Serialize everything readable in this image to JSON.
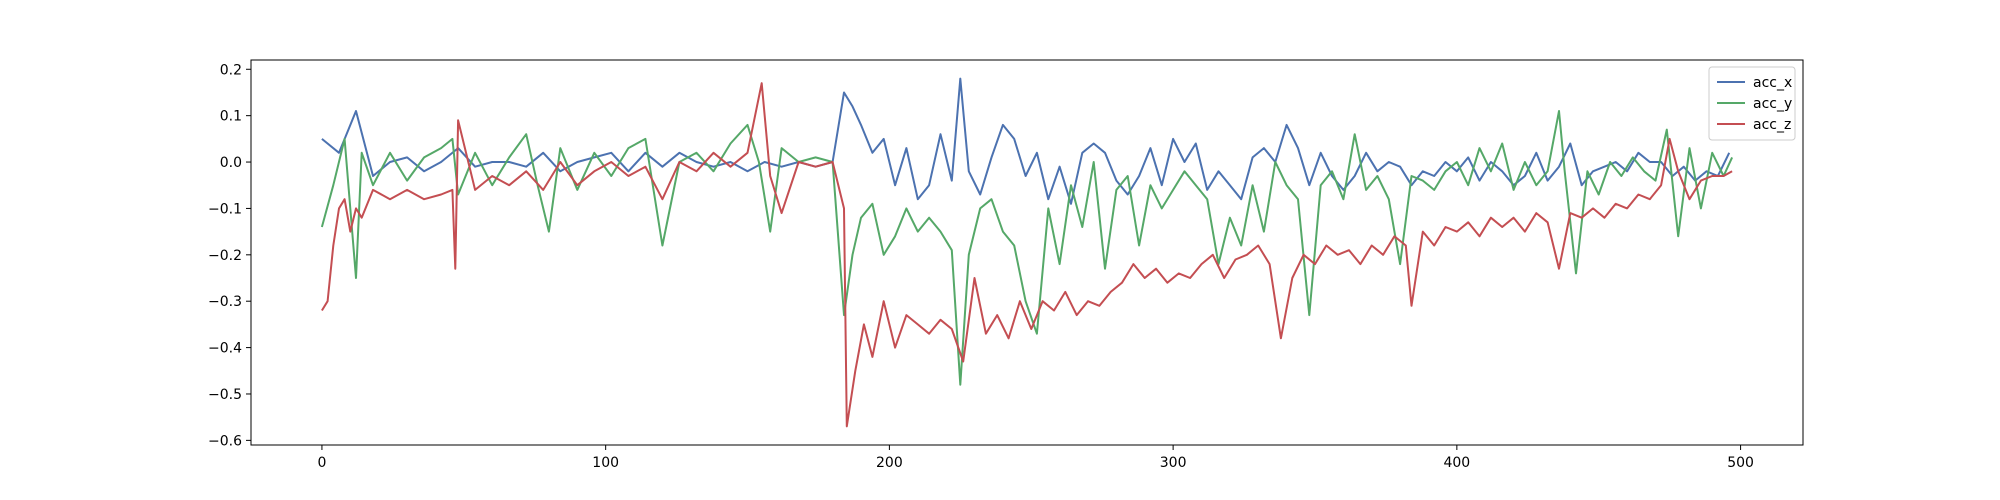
{
  "chart_data": {
    "type": "line",
    "title": "",
    "xlabel": "",
    "ylabel": "",
    "xlim": [
      -25,
      522
    ],
    "ylim": [
      -0.61,
      0.22
    ],
    "x_ticks": [
      0,
      100,
      200,
      300,
      400,
      500
    ],
    "y_ticks": [
      0.2,
      0.1,
      0.0,
      -0.1,
      -0.2,
      -0.3,
      -0.4,
      -0.5,
      -0.6
    ],
    "x_tick_labels": [
      "0",
      "100",
      "200",
      "300",
      "400",
      "500"
    ],
    "y_tick_labels": [
      "0.2",
      "0.1",
      "0.0",
      "−0.1",
      "−0.2",
      "−0.3",
      "−0.4",
      "−0.5",
      "−0.6"
    ],
    "grid": false,
    "legend_position": "top-right",
    "series": [
      {
        "name": "acc_x",
        "color": "#4c72b0",
        "x": [
          0,
          6,
          12,
          18,
          24,
          30,
          36,
          42,
          48,
          54,
          60,
          66,
          72,
          78,
          84,
          90,
          96,
          102,
          108,
          114,
          120,
          126,
          132,
          138,
          144,
          150,
          156,
          162,
          168,
          174,
          180,
          184,
          187,
          190,
          194,
          198,
          202,
          206,
          210,
          214,
          218,
          222,
          225,
          228,
          232,
          236,
          240,
          244,
          248,
          252,
          256,
          260,
          264,
          268,
          272,
          276,
          280,
          284,
          288,
          292,
          296,
          300,
          304,
          308,
          312,
          316,
          320,
          324,
          328,
          332,
          336,
          340,
          344,
          348,
          352,
          356,
          360,
          364,
          368,
          372,
          376,
          380,
          384,
          388,
          392,
          396,
          400,
          404,
          408,
          412,
          416,
          420,
          424,
          428,
          432,
          436,
          440,
          444,
          448,
          452,
          456,
          460,
          464,
          468,
          472,
          476,
          480,
          484,
          488,
          492,
          496
        ],
        "values": [
          0.05,
          0.02,
          0.11,
          -0.03,
          0.0,
          0.01,
          -0.02,
          0.0,
          0.03,
          -0.01,
          0.0,
          0.0,
          -0.01,
          0.02,
          -0.02,
          0.0,
          0.01,
          0.02,
          -0.02,
          0.02,
          -0.01,
          0.02,
          0.0,
          -0.01,
          0.0,
          -0.02,
          0.0,
          -0.01,
          0.0,
          -0.01,
          0.0,
          0.15,
          0.12,
          0.08,
          0.02,
          0.05,
          -0.05,
          0.03,
          -0.08,
          -0.05,
          0.06,
          -0.04,
          0.18,
          -0.02,
          -0.07,
          0.01,
          0.08,
          0.05,
          -0.03,
          0.02,
          -0.08,
          -0.01,
          -0.09,
          0.02,
          0.04,
          0.02,
          -0.04,
          -0.07,
          -0.03,
          0.03,
          -0.05,
          0.05,
          0.0,
          0.04,
          -0.06,
          -0.02,
          -0.05,
          -0.08,
          0.01,
          0.03,
          0.0,
          0.08,
          0.03,
          -0.05,
          0.02,
          -0.03,
          -0.06,
          -0.03,
          0.02,
          -0.02,
          0.0,
          -0.01,
          -0.05,
          -0.02,
          -0.03,
          0.0,
          -0.02,
          0.01,
          -0.04,
          0.0,
          -0.02,
          -0.05,
          -0.03,
          0.02,
          -0.04,
          -0.01,
          0.04,
          -0.05,
          -0.02,
          -0.01,
          0.0,
          -0.02,
          0.02,
          0.0,
          0.0,
          -0.03,
          -0.01,
          -0.04,
          -0.02,
          -0.03,
          0.02
        ]
      },
      {
        "name": "acc_y",
        "color": "#55a868",
        "x": [
          0,
          4,
          8,
          12,
          14,
          18,
          24,
          30,
          36,
          42,
          46,
          48,
          54,
          60,
          66,
          72,
          76,
          80,
          84,
          90,
          96,
          102,
          108,
          114,
          120,
          126,
          132,
          138,
          144,
          150,
          154,
          158,
          162,
          168,
          174,
          180,
          184,
          187,
          190,
          194,
          198,
          202,
          206,
          210,
          214,
          218,
          222,
          225,
          228,
          232,
          236,
          240,
          244,
          248,
          252,
          256,
          260,
          264,
          268,
          272,
          276,
          280,
          284,
          288,
          292,
          296,
          300,
          304,
          308,
          312,
          316,
          320,
          324,
          328,
          332,
          336,
          340,
          344,
          348,
          352,
          356,
          360,
          364,
          368,
          372,
          376,
          380,
          384,
          388,
          392,
          396,
          400,
          404,
          408,
          412,
          416,
          420,
          424,
          428,
          432,
          436,
          438,
          442,
          446,
          450,
          454,
          458,
          462,
          466,
          470,
          474,
          478,
          482,
          486,
          490,
          494,
          497
        ],
        "values": [
          -0.14,
          -0.05,
          0.05,
          -0.25,
          0.02,
          -0.05,
          0.02,
          -0.04,
          0.01,
          0.03,
          0.05,
          -0.07,
          0.02,
          -0.05,
          0.01,
          0.06,
          -0.05,
          -0.15,
          0.03,
          -0.06,
          0.02,
          -0.03,
          0.03,
          0.05,
          -0.18,
          0.0,
          0.02,
          -0.02,
          0.04,
          0.08,
          0.0,
          -0.15,
          0.03,
          0.0,
          0.01,
          0.0,
          -0.33,
          -0.2,
          -0.12,
          -0.09,
          -0.2,
          -0.16,
          -0.1,
          -0.15,
          -0.12,
          -0.15,
          -0.19,
          -0.48,
          -0.2,
          -0.1,
          -0.08,
          -0.15,
          -0.18,
          -0.3,
          -0.37,
          -0.1,
          -0.22,
          -0.05,
          -0.14,
          0.0,
          -0.23,
          -0.06,
          -0.03,
          -0.18,
          -0.05,
          -0.1,
          -0.06,
          -0.02,
          -0.05,
          -0.08,
          -0.22,
          -0.12,
          -0.18,
          -0.05,
          -0.15,
          0.0,
          -0.05,
          -0.08,
          -0.33,
          -0.05,
          -0.02,
          -0.08,
          0.06,
          -0.06,
          -0.03,
          -0.08,
          -0.22,
          -0.03,
          -0.04,
          -0.06,
          -0.02,
          0.0,
          -0.05,
          0.03,
          -0.02,
          0.04,
          -0.06,
          0.0,
          -0.05,
          -0.02,
          0.11,
          -0.02,
          -0.24,
          -0.02,
          -0.07,
          0.0,
          -0.03,
          0.01,
          -0.02,
          -0.04,
          0.07,
          -0.16,
          0.03,
          -0.1,
          0.02,
          -0.03,
          0.01
        ]
      },
      {
        "name": "acc_z",
        "color": "#c44e52",
        "x": [
          0,
          2,
          4,
          6,
          8,
          10,
          12,
          14,
          18,
          24,
          30,
          36,
          42,
          46,
          47,
          48,
          54,
          60,
          66,
          72,
          78,
          84,
          90,
          96,
          102,
          108,
          114,
          120,
          126,
          132,
          138,
          144,
          150,
          155,
          158,
          162,
          168,
          174,
          180,
          184,
          185,
          188,
          191,
          194,
          198,
          202,
          206,
          210,
          214,
          218,
          222,
          226,
          230,
          234,
          238,
          242,
          246,
          250,
          254,
          258,
          262,
          266,
          270,
          274,
          278,
          282,
          286,
          290,
          294,
          298,
          302,
          306,
          310,
          314,
          318,
          322,
          326,
          330,
          334,
          338,
          342,
          346,
          350,
          354,
          358,
          362,
          366,
          370,
          374,
          378,
          382,
          384,
          388,
          392,
          396,
          400,
          404,
          408,
          412,
          416,
          420,
          424,
          428,
          432,
          436,
          440,
          444,
          448,
          452,
          456,
          460,
          464,
          468,
          472,
          475,
          478,
          482,
          486,
          490,
          494,
          497
        ],
        "values": [
          -0.32,
          -0.3,
          -0.18,
          -0.1,
          -0.08,
          -0.15,
          -0.1,
          -0.12,
          -0.06,
          -0.08,
          -0.06,
          -0.08,
          -0.07,
          -0.06,
          -0.23,
          0.09,
          -0.06,
          -0.03,
          -0.05,
          -0.02,
          -0.06,
          0.0,
          -0.05,
          -0.02,
          0.0,
          -0.03,
          -0.01,
          -0.08,
          0.0,
          -0.02,
          0.02,
          -0.01,
          0.02,
          0.17,
          -0.03,
          -0.11,
          0.0,
          -0.01,
          0.0,
          -0.1,
          -0.57,
          -0.45,
          -0.35,
          -0.42,
          -0.3,
          -0.4,
          -0.33,
          -0.35,
          -0.37,
          -0.34,
          -0.36,
          -0.43,
          -0.25,
          -0.37,
          -0.33,
          -0.38,
          -0.3,
          -0.36,
          -0.3,
          -0.32,
          -0.28,
          -0.33,
          -0.3,
          -0.31,
          -0.28,
          -0.26,
          -0.22,
          -0.25,
          -0.23,
          -0.26,
          -0.24,
          -0.25,
          -0.22,
          -0.2,
          -0.25,
          -0.21,
          -0.2,
          -0.18,
          -0.22,
          -0.38,
          -0.25,
          -0.2,
          -0.22,
          -0.18,
          -0.2,
          -0.19,
          -0.22,
          -0.18,
          -0.2,
          -0.16,
          -0.18,
          -0.31,
          -0.15,
          -0.18,
          -0.14,
          -0.15,
          -0.13,
          -0.16,
          -0.12,
          -0.14,
          -0.12,
          -0.15,
          -0.11,
          -0.13,
          -0.23,
          -0.11,
          -0.12,
          -0.1,
          -0.12,
          -0.09,
          -0.1,
          -0.07,
          -0.08,
          -0.05,
          0.05,
          -0.02,
          -0.08,
          -0.04,
          -0.03,
          -0.03,
          -0.02
        ]
      }
    ]
  }
}
